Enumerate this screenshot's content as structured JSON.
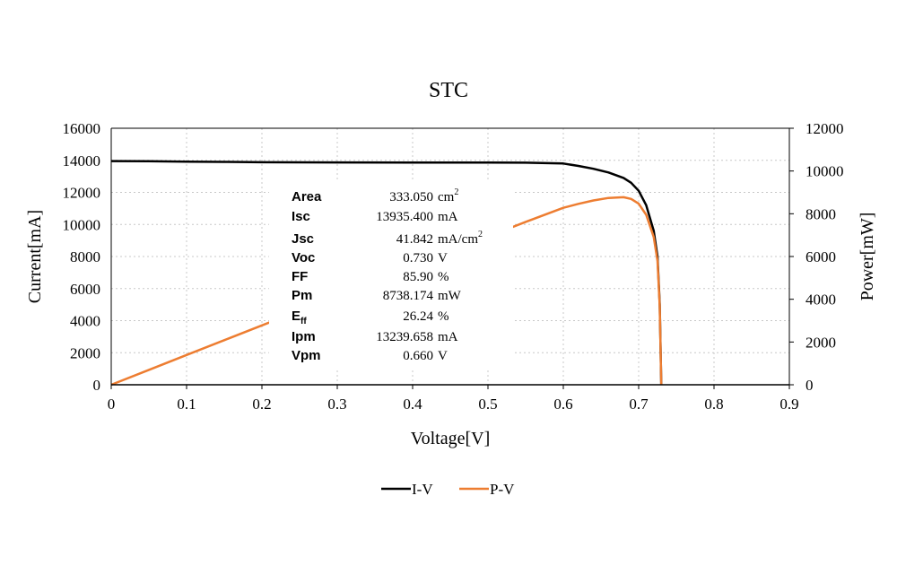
{
  "chart_data": {
    "type": "line",
    "title": "STC",
    "xlabel": "Voltage[V]",
    "ylabel": "Current[mA]",
    "y2label": "Power[mW]",
    "xlim": [
      0,
      0.9
    ],
    "ylim": [
      0,
      16000
    ],
    "y2lim": [
      0,
      12000
    ],
    "xticks": [
      "0",
      "0.1",
      "0.2",
      "0.3",
      "0.4",
      "0.5",
      "0.6",
      "0.7",
      "0.8",
      "0.9"
    ],
    "yticks": [
      "0",
      "2000",
      "4000",
      "6000",
      "8000",
      "10000",
      "12000",
      "14000",
      "16000"
    ],
    "y2ticks": [
      "0",
      "2000",
      "4000",
      "6000",
      "8000",
      "10000",
      "12000"
    ],
    "grid": true,
    "legend_position": "bottom",
    "series": [
      {
        "name": "I-V",
        "axis": "left",
        "color": "#000000",
        "x": [
          0,
          0.05,
          0.1,
          0.15,
          0.2,
          0.3,
          0.4,
          0.5,
          0.55,
          0.6,
          0.62,
          0.64,
          0.66,
          0.68,
          0.69,
          0.7,
          0.71,
          0.72,
          0.725,
          0.728,
          0.73
        ],
        "y": [
          13950,
          13940,
          13920,
          13900,
          13880,
          13870,
          13860,
          13855,
          13850,
          13800,
          13650,
          13470,
          13240,
          12900,
          12600,
          12100,
          11200,
          9600,
          8000,
          5000,
          0
        ]
      },
      {
        "name": "P-V",
        "axis": "right",
        "color": "#ED7D31",
        "x": [
          0,
          0.05,
          0.1,
          0.15,
          0.2,
          0.3,
          0.4,
          0.5,
          0.55,
          0.6,
          0.62,
          0.64,
          0.66,
          0.68,
          0.69,
          0.7,
          0.71,
          0.72,
          0.725,
          0.728,
          0.73
        ],
        "y": [
          0,
          697,
          1392,
          2085,
          2776,
          4161,
          5544,
          6928,
          7618,
          8280,
          8463,
          8621,
          8738,
          8772,
          8694,
          8470,
          7952,
          6912,
          5800,
          3640,
          0
        ]
      }
    ]
  },
  "parameters": [
    {
      "label": "Area",
      "label_sub": "",
      "value": "333.050",
      "unit": "cm",
      "unit_sup": "2"
    },
    {
      "label": "Isc",
      "label_sub": "",
      "value": "13935.400",
      "unit": "mA",
      "unit_sup": ""
    },
    {
      "label": "Jsc",
      "label_sub": "",
      "value": "41.842",
      "unit": "mA/cm",
      "unit_sup": "2"
    },
    {
      "label": "Voc",
      "label_sub": "",
      "value": "0.730",
      "unit": "V",
      "unit_sup": ""
    },
    {
      "label": "FF",
      "label_sub": "",
      "value": "85.90",
      "unit": "%",
      "unit_sup": ""
    },
    {
      "label": "Pm",
      "label_sub": "",
      "value": "8738.174",
      "unit": "mW",
      "unit_sup": ""
    },
    {
      "label": "E",
      "label_sub": "ff",
      "value": "26.24",
      "unit": "%",
      "unit_sup": ""
    },
    {
      "label": "Ipm",
      "label_sub": "",
      "value": "13239.658",
      "unit": "mA",
      "unit_sup": ""
    },
    {
      "label": "Vpm",
      "label_sub": "",
      "value": "0.660",
      "unit": "V",
      "unit_sup": ""
    }
  ]
}
